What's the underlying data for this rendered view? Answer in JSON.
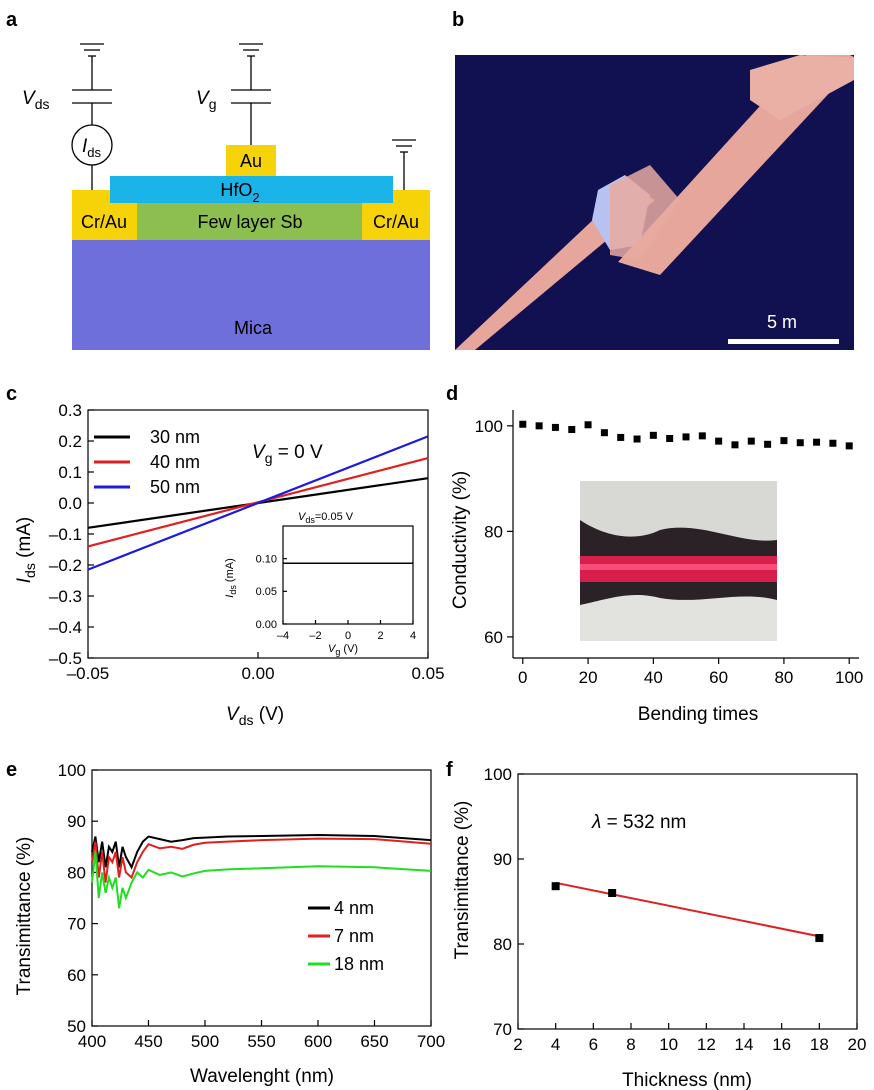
{
  "panels": {
    "a": {
      "label": "a",
      "vds_label": "V",
      "vds_sub": "ds",
      "vg_label": "V",
      "vg_sub": "g",
      "ids_label": "I",
      "ids_sub": "ds",
      "au": "Au",
      "hfo2": "HfO",
      "hfo2_sub": "2",
      "sb": "Few layer Sb",
      "cr_left": "Cr/Au",
      "cr_right": "Cr/Au",
      "mica": "Mica",
      "colors": {
        "au": "#f6d308",
        "hfo2": "#1ab4e8",
        "sb": "#8cbe50",
        "mica": "#6f6fdb"
      }
    },
    "b": {
      "label": "b",
      "scale_bar": "5   m"
    },
    "c": {
      "label": "c",
      "annotation": "V",
      "annotation_sub": "g",
      "annotation_rest": " = 0 V",
      "xlabel": "V",
      "xlabel_sub": "ds",
      "xlabel_unit": " (V)",
      "ylabel": "I",
      "ylabel_sub": "ds",
      "ylabel_unit": " (mA)",
      "inset": {
        "annotation": "V",
        "annotation_sub": "ds",
        "annotation_rest": "=0.05 V",
        "xlabel": "V",
        "xlabel_sub": "g",
        "xlabel_unit": " (V)",
        "ylabel": "I",
        "ylabel_sub": "ds",
        "ylabel_unit": " (mA)"
      }
    },
    "d": {
      "label": "d",
      "xlabel": "Bending times",
      "ylabel": "Conductivity (%)"
    },
    "e": {
      "label": "e",
      "xlabel": "Wavelenght (nm)",
      "ylabel": "Transimittance (%)"
    },
    "f": {
      "label": "f",
      "xlabel": "Thickness (nm)",
      "ylabel": "Transimittance (%)",
      "annotation": "λ",
      "annotation_rest": " = 532 nm"
    }
  },
  "chart_data": [
    {
      "id": "c",
      "type": "line",
      "xlim": [
        -0.05,
        0.05
      ],
      "ylim": [
        -0.5,
        0.3
      ],
      "xticks": [
        "–0.05",
        "0.00",
        "0.05"
      ],
      "xtick_values": [
        -0.05,
        0,
        0.05
      ],
      "yticks": [
        "0.3",
        "0.2",
        "0.1",
        "0.0",
        "–0.1",
        "–0.2",
        "–0.3",
        "–0.4",
        "–0.5"
      ],
      "ytick_values": [
        0.3,
        0.2,
        0.1,
        0.0,
        -0.1,
        -0.2,
        -0.3,
        -0.4,
        -0.5
      ],
      "series": [
        {
          "name": "30 nm",
          "color": "#000000",
          "x": [
            -0.05,
            0.05
          ],
          "y": [
            -0.08,
            0.08
          ]
        },
        {
          "name": "40 nm",
          "color": "#e02020",
          "x": [
            -0.05,
            0.05
          ],
          "y": [
            -0.14,
            0.145
          ]
        },
        {
          "name": "50 nm",
          "color": "#1a1ae0",
          "x": [
            -0.05,
            0.05
          ],
          "y": [
            -0.215,
            0.215
          ]
        }
      ]
    },
    {
      "id": "c-inset",
      "type": "line",
      "xlim": [
        -4,
        4
      ],
      "ylim": [
        0,
        0.15
      ],
      "xticks": [
        "–4",
        "–2",
        "0",
        "2",
        "4"
      ],
      "xtick_values": [
        -4,
        -2,
        0,
        2,
        4
      ],
      "yticks": [
        "0.10",
        "0.05",
        "0.00"
      ],
      "ytick_values": [
        0.1,
        0.05,
        0
      ],
      "series": [
        {
          "color": "#000000",
          "x": [
            -4,
            4
          ],
          "y": [
            0.093,
            0.093
          ]
        }
      ]
    },
    {
      "id": "d",
      "type": "scatter",
      "xlim": [
        -3,
        103
      ],
      "ylim": [
        56,
        103
      ],
      "xticks": [
        "0",
        "20",
        "40",
        "60",
        "80",
        "100"
      ],
      "xtick_values": [
        0,
        20,
        40,
        60,
        80,
        100
      ],
      "yticks": [
        "100",
        "80",
        "60"
      ],
      "ytick_values": [
        100,
        80,
        60
      ],
      "series": [
        {
          "color": "#000000",
          "x": [
            0,
            5,
            10,
            15,
            20,
            25,
            30,
            35,
            40,
            45,
            50,
            55,
            60,
            65,
            70,
            75,
            80,
            85,
            90,
            95,
            100
          ],
          "y": [
            100.3,
            100,
            99.7,
            99.3,
            100.2,
            98.7,
            97.8,
            97.5,
            98.2,
            97.6,
            97.9,
            98.1,
            97.1,
            96.4,
            97.1,
            96.5,
            97.2,
            96.8,
            96.9,
            96.7,
            96.2
          ]
        }
      ]
    },
    {
      "id": "e",
      "type": "line",
      "xlim": [
        400,
        700
      ],
      "ylim": [
        50,
        100
      ],
      "xticks": [
        "400",
        "450",
        "500",
        "550",
        "600",
        "650",
        "700"
      ],
      "xtick_values": [
        400,
        450,
        500,
        550,
        600,
        650,
        700
      ],
      "yticks": [
        "100",
        "90",
        "80",
        "70",
        "60",
        "50"
      ],
      "ytick_values": [
        100,
        90,
        80,
        70,
        60,
        50
      ],
      "series": [
        {
          "name": "4 nm",
          "color": "#000000",
          "x": [
            400,
            403,
            406,
            409,
            412,
            415,
            418,
            421,
            424,
            427,
            430,
            435,
            440,
            445,
            450,
            460,
            470,
            480,
            490,
            500,
            520,
            550,
            600,
            650,
            700
          ],
          "y": [
            84,
            87,
            82,
            86,
            81,
            85,
            84,
            86,
            81,
            85,
            83,
            81,
            84,
            86,
            87,
            86.5,
            86,
            86.3,
            86.7,
            86.8,
            87,
            87.1,
            87.3,
            87.1,
            86.3
          ]
        },
        {
          "name": "7 nm",
          "color": "#e02020",
          "x": [
            400,
            403,
            406,
            409,
            412,
            415,
            418,
            421,
            424,
            427,
            430,
            435,
            440,
            445,
            450,
            460,
            470,
            480,
            490,
            500,
            520,
            550,
            600,
            650,
            700
          ],
          "y": [
            82,
            86,
            79,
            84,
            78,
            83,
            82,
            84,
            79,
            83,
            80,
            79,
            82,
            84,
            85.5,
            84.7,
            85,
            84.6,
            85.4,
            85.8,
            86,
            86.3,
            86.6,
            86.5,
            85.6
          ]
        },
        {
          "name": "18 nm",
          "color": "#22dd22",
          "x": [
            400,
            403,
            406,
            409,
            412,
            415,
            418,
            421,
            424,
            427,
            430,
            435,
            440,
            445,
            450,
            460,
            470,
            480,
            490,
            500,
            520,
            550,
            600,
            650,
            700
          ],
          "y": [
            78,
            84,
            75,
            80,
            76,
            79,
            77,
            79,
            73,
            77,
            75,
            78,
            80,
            79,
            80.5,
            79.5,
            80,
            79.2,
            79.8,
            80.3,
            80.6,
            80.8,
            81.2,
            81,
            80.3
          ]
        }
      ]
    },
    {
      "id": "f",
      "type": "scatter",
      "xlim": [
        2,
        20
      ],
      "ylim": [
        70,
        100
      ],
      "xticks": [
        "2",
        "4",
        "6",
        "8",
        "10",
        "12",
        "14",
        "16",
        "18",
        "20"
      ],
      "xtick_values": [
        2,
        4,
        6,
        8,
        10,
        12,
        14,
        16,
        18,
        20
      ],
      "yticks": [
        "100",
        "90",
        "80",
        "70"
      ],
      "ytick_values": [
        100,
        90,
        80,
        70
      ],
      "points": {
        "x": [
          4,
          7,
          18
        ],
        "y": [
          86.8,
          86,
          80.7
        ],
        "color": "#000000"
      },
      "fit": {
        "x": [
          4,
          18
        ],
        "y": [
          87.2,
          80.9
        ],
        "color": "#e02020"
      }
    }
  ]
}
